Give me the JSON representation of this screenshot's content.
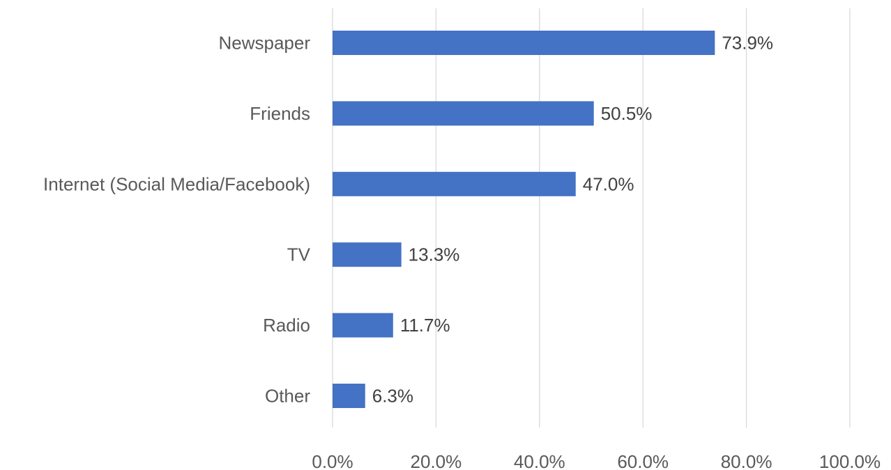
{
  "chart_data": {
    "type": "bar",
    "orientation": "horizontal",
    "title": "",
    "xlabel": "",
    "ylabel": "",
    "categories": [
      "Newspaper",
      "Friends",
      "Internet (Social Media/Facebook)",
      "TV",
      "Radio",
      "Other"
    ],
    "values": [
      73.9,
      50.5,
      47.0,
      13.3,
      11.7,
      6.3
    ],
    "data_labels": [
      "73.9%",
      "50.5%",
      "47.0%",
      "13.3%",
      "11.7%",
      "6.3%"
    ],
    "xlim": [
      0,
      100
    ],
    "x_ticks": [
      0,
      20,
      40,
      60,
      80,
      100
    ],
    "x_tick_labels": [
      "0.0%",
      "20.0%",
      "40.0%",
      "60.0%",
      "80.0%",
      "100.0%"
    ],
    "grid": "vertical",
    "legend": "none",
    "bar_color": "#4472c4"
  }
}
